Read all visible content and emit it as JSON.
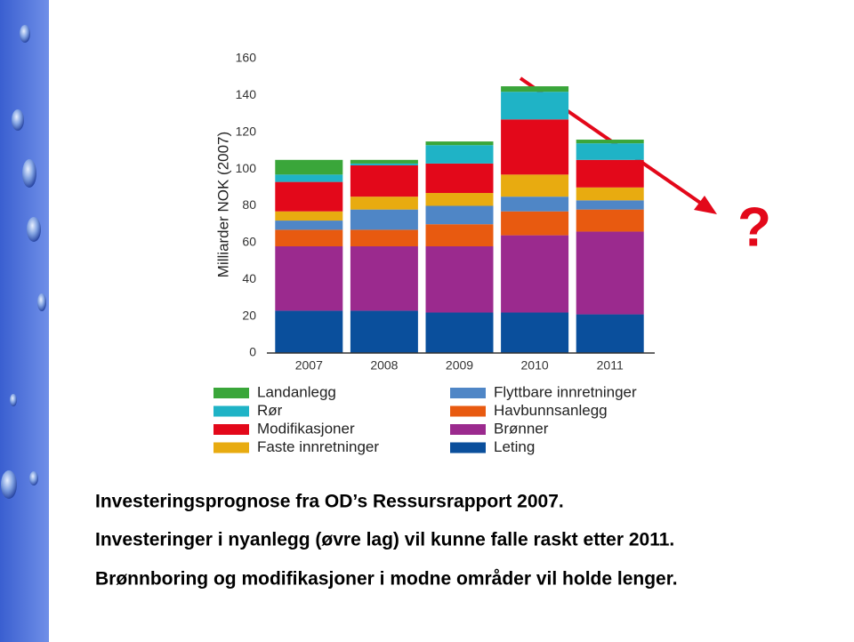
{
  "chart_data": {
    "type": "stacked_bar",
    "ylabel": "Milliarder NOK (2007)",
    "categories": [
      "2007",
      "2008",
      "2009",
      "2010",
      "2011"
    ],
    "ylim": [
      0,
      160
    ],
    "yticks": [
      0,
      20,
      40,
      60,
      80,
      100,
      120,
      140,
      160
    ],
    "series": [
      {
        "name": "Leting",
        "color": "#0a4f9c",
        "values": [
          23,
          23,
          22,
          22,
          21
        ]
      },
      {
        "name": "Brønner",
        "color": "#9b2a8e",
        "values": [
          35,
          35,
          36,
          42,
          45
        ]
      },
      {
        "name": "Havbunnsanlegg",
        "color": "#e85a10",
        "values": [
          9,
          9,
          12,
          13,
          12
        ]
      },
      {
        "name": "Flyttbare innretninger",
        "color": "#4f86c6",
        "values": [
          5,
          11,
          10,
          8,
          5
        ]
      },
      {
        "name": "Faste innretninger",
        "color": "#e8ab10",
        "values": [
          5,
          7,
          7,
          12,
          7
        ]
      },
      {
        "name": "Modifikasjoner",
        "color": "#e3081a",
        "values": [
          16,
          17,
          16,
          30,
          15
        ]
      },
      {
        "name": "Rør",
        "color": "#1fb3c6",
        "values": [
          4,
          1,
          10,
          15,
          9
        ]
      },
      {
        "name": "Landanlegg",
        "color": "#3aa63a",
        "values": [
          8,
          2,
          2,
          3,
          2
        ]
      }
    ]
  },
  "slide": {
    "mark": "?",
    "lines": [
      "Investeringsprognose fra OD’s Ressursrapport 2007.",
      "Investeringer i nyanlegg (øvre lag) vil kunne falle raskt etter 2011.",
      "Brønnboring og modifikasjoner i modne områder vil holde lenger."
    ]
  }
}
